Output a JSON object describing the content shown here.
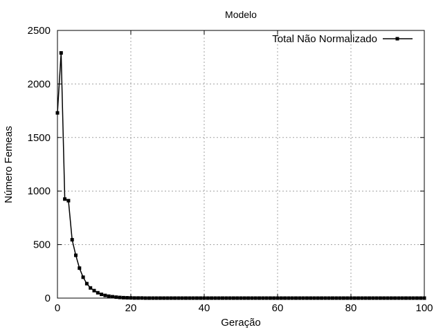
{
  "chart_data": {
    "type": "line",
    "title": "Modelo",
    "xlabel": "Geração",
    "ylabel": "Número Femeas",
    "xlim": [
      0,
      100
    ],
    "ylim": [
      0,
      2500
    ],
    "xticks": [
      0,
      20,
      40,
      60,
      80,
      100
    ],
    "yticks": [
      0,
      500,
      1000,
      1500,
      2000,
      2500
    ],
    "grid": true,
    "legend_position": "top-right",
    "series": [
      {
        "name": "Total Não Normalizado",
        "color": "#000000",
        "marker": "filled-square",
        "x": [
          0,
          1,
          2,
          3,
          4,
          5,
          6,
          7,
          8,
          9,
          10,
          11,
          12,
          13,
          14,
          15,
          16,
          17,
          18,
          19,
          20,
          21,
          22,
          23,
          24,
          25,
          26,
          27,
          28,
          29,
          30,
          31,
          32,
          33,
          34,
          35,
          36,
          37,
          38,
          39,
          40,
          41,
          42,
          43,
          44,
          45,
          46,
          47,
          48,
          49,
          50,
          51,
          52,
          53,
          54,
          55,
          56,
          57,
          58,
          59,
          60,
          61,
          62,
          63,
          64,
          65,
          66,
          67,
          68,
          69,
          70,
          71,
          72,
          73,
          74,
          75,
          76,
          77,
          78,
          79,
          80,
          81,
          82,
          83,
          84,
          85,
          86,
          87,
          88,
          89,
          90,
          91,
          92,
          93,
          94,
          95,
          96,
          97,
          98,
          99,
          100
        ],
        "y": [
          1730,
          2290,
          925,
          910,
          545,
          400,
          280,
          195,
          135,
          95,
          70,
          50,
          35,
          25,
          18,
          13,
          9,
          6,
          4,
          3,
          2,
          1,
          1,
          1,
          0,
          0,
          0,
          0,
          0,
          0,
          0,
          0,
          0,
          0,
          0,
          0,
          0,
          0,
          0,
          0,
          0,
          0,
          0,
          0,
          0,
          0,
          0,
          0,
          0,
          0,
          0,
          0,
          0,
          0,
          0,
          0,
          0,
          0,
          0,
          0,
          0,
          0,
          0,
          0,
          0,
          0,
          0,
          0,
          0,
          0,
          0,
          0,
          0,
          0,
          0,
          0,
          0,
          0,
          0,
          0,
          0,
          0,
          0,
          0,
          0,
          0,
          0,
          0,
          0,
          0,
          0,
          0,
          0,
          0,
          0,
          0,
          0,
          0,
          0,
          0,
          0
        ]
      }
    ]
  }
}
